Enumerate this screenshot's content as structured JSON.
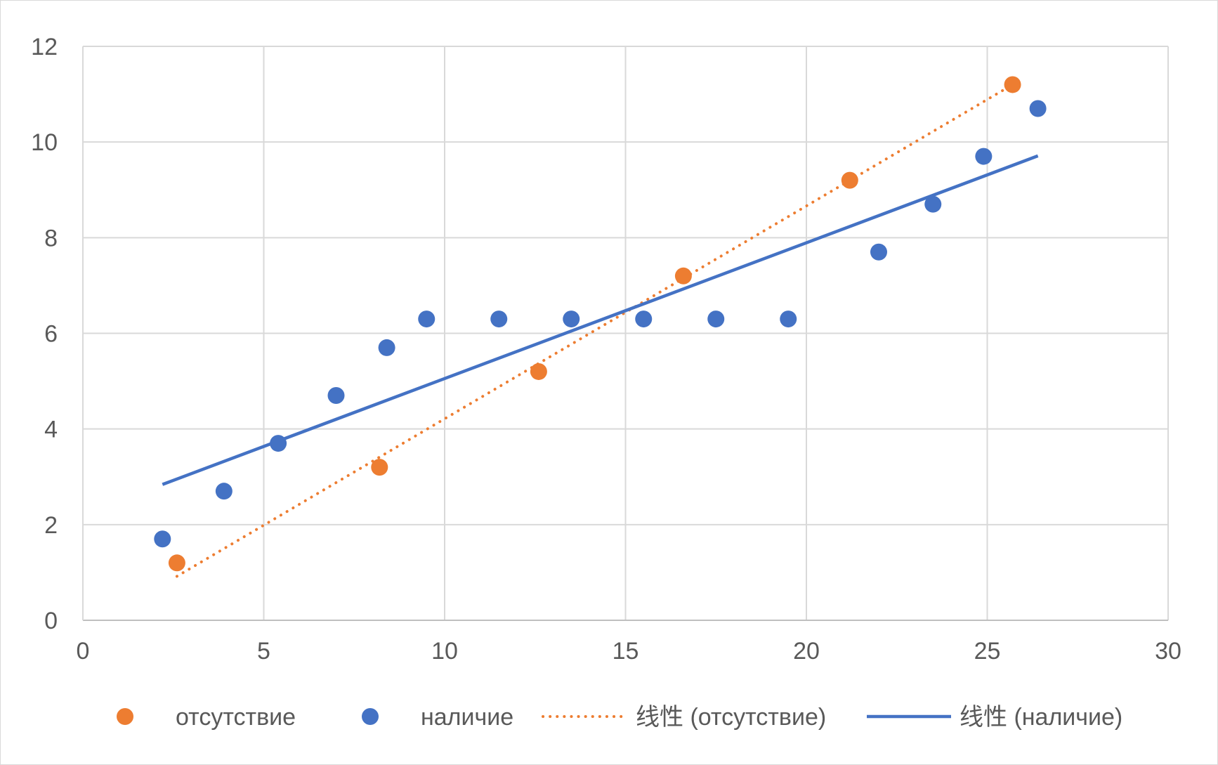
{
  "chart_data": {
    "type": "scatter",
    "xlim": [
      0,
      30
    ],
    "ylim": [
      0,
      12
    ],
    "x_ticks": [
      0,
      5,
      10,
      15,
      20,
      25,
      30
    ],
    "y_ticks": [
      0,
      2,
      4,
      6,
      8,
      10,
      12
    ],
    "grid": true,
    "legend_position": "bottom",
    "series": [
      {
        "name": "отсутствие",
        "color": "#ED7D31",
        "marker": "circle",
        "points": [
          [
            2.6,
            1.2
          ],
          [
            8.2,
            3.2
          ],
          [
            12.6,
            5.2
          ],
          [
            16.6,
            7.2
          ],
          [
            21.2,
            9.2
          ],
          [
            25.7,
            11.2
          ]
        ]
      },
      {
        "name": "наличие",
        "color": "#4472C4",
        "marker": "circle",
        "points": [
          [
            2.2,
            1.7
          ],
          [
            3.9,
            2.7
          ],
          [
            5.4,
            3.7
          ],
          [
            7.0,
            4.7
          ],
          [
            8.4,
            5.7
          ],
          [
            9.5,
            6.3
          ],
          [
            11.5,
            6.3
          ],
          [
            13.5,
            6.3
          ],
          [
            15.5,
            6.3
          ],
          [
            17.5,
            6.3
          ],
          [
            19.5,
            6.3
          ],
          [
            22.0,
            7.7
          ],
          [
            23.5,
            8.7
          ],
          [
            24.9,
            9.7
          ],
          [
            26.4,
            10.7
          ]
        ]
      }
    ],
    "trendlines": [
      {
        "name": "线性 (отсутствие)",
        "color": "#ED7D31",
        "style": "dotted",
        "from": [
          2.6,
          0.92
        ],
        "to": [
          25.7,
          11.2
        ]
      },
      {
        "name": "线性 (наличие)",
        "color": "#4472C4",
        "style": "solid",
        "from": [
          2.2,
          2.84
        ],
        "to": [
          26.4,
          9.71
        ]
      }
    ]
  }
}
